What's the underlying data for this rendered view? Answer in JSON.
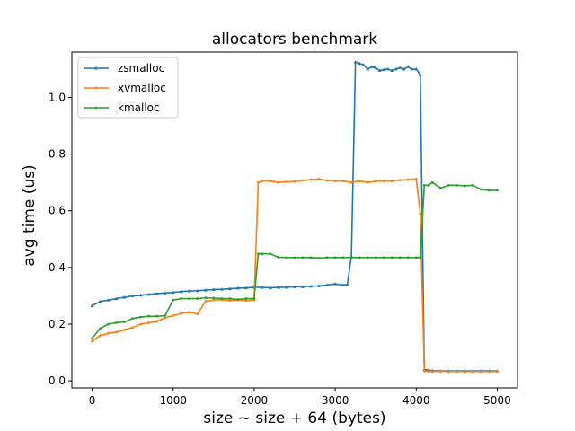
{
  "chart_data": {
    "type": "line",
    "title": "allocators benchmark",
    "xlabel": "size ~ size + 64 (bytes)",
    "ylabel": "avg time (us)",
    "xlim": [
      -250,
      5250
    ],
    "ylim": [
      -0.025,
      1.16
    ],
    "xticks": [
      0,
      1000,
      2000,
      3000,
      4000,
      5000
    ],
    "yticks": [
      0.0,
      0.2,
      0.4,
      0.6,
      0.8,
      1.0
    ],
    "grid": false,
    "legend_position": "top-left",
    "series": [
      {
        "name": "zsmalloc",
        "color": "#1f77b4",
        "marker": "tri",
        "x": [
          0,
          100,
          200,
          300,
          400,
          500,
          600,
          700,
          800,
          900,
          1000,
          1100,
          1200,
          1300,
          1400,
          1500,
          1600,
          1700,
          1800,
          1900,
          2000,
          2100,
          2200,
          2300,
          2400,
          2500,
          2600,
          2700,
          2800,
          2900,
          3000,
          3100,
          3150,
          3200,
          3250,
          3300,
          3350,
          3400,
          3450,
          3500,
          3550,
          3600,
          3650,
          3700,
          3750,
          3800,
          3850,
          3900,
          3950,
          4000,
          4050,
          4100,
          4150,
          4200,
          4300,
          4400,
          4500,
          4600,
          4700,
          4800,
          4900,
          5000
        ],
        "y": [
          0.265,
          0.28,
          0.285,
          0.29,
          0.295,
          0.3,
          0.302,
          0.305,
          0.308,
          0.31,
          0.312,
          0.315,
          0.317,
          0.318,
          0.32,
          0.322,
          0.323,
          0.325,
          0.327,
          0.328,
          0.33,
          0.33,
          0.328,
          0.33,
          0.33,
          0.332,
          0.332,
          0.334,
          0.335,
          0.338,
          0.342,
          0.338,
          0.34,
          0.44,
          1.125,
          1.12,
          1.115,
          1.1,
          1.108,
          1.105,
          1.095,
          1.098,
          1.1,
          1.095,
          1.1,
          1.105,
          1.1,
          1.108,
          1.1,
          1.1,
          1.08,
          0.04,
          0.038,
          0.036,
          0.035,
          0.035,
          0.035,
          0.035,
          0.035,
          0.035,
          0.035,
          0.035
        ]
      },
      {
        "name": "xvmalloc",
        "color": "#ff7f0e",
        "marker": "dot",
        "x": [
          0,
          100,
          200,
          300,
          400,
          500,
          600,
          700,
          800,
          900,
          1000,
          1100,
          1200,
          1300,
          1400,
          1500,
          1600,
          1700,
          1800,
          1900,
          2000,
          2050,
          2100,
          2200,
          2300,
          2400,
          2500,
          2600,
          2700,
          2800,
          2900,
          3000,
          3100,
          3200,
          3300,
          3400,
          3500,
          3600,
          3700,
          3800,
          3900,
          4000,
          4050,
          4100,
          4150,
          4200,
          4300,
          4400,
          4500,
          4600,
          4700,
          4800,
          4900,
          5000
        ],
        "y": [
          0.14,
          0.16,
          0.168,
          0.172,
          0.18,
          0.188,
          0.2,
          0.205,
          0.21,
          0.222,
          0.23,
          0.238,
          0.242,
          0.236,
          0.28,
          0.285,
          0.286,
          0.283,
          0.285,
          0.283,
          0.285,
          0.7,
          0.705,
          0.705,
          0.7,
          0.702,
          0.703,
          0.707,
          0.71,
          0.712,
          0.707,
          0.705,
          0.705,
          0.7,
          0.705,
          0.7,
          0.704,
          0.705,
          0.705,
          0.708,
          0.71,
          0.712,
          0.59,
          0.035,
          0.033,
          0.033,
          0.034,
          0.033,
          0.033,
          0.033,
          0.033,
          0.033,
          0.033,
          0.033
        ]
      },
      {
        "name": "kmalloc",
        "color": "#2ca02c",
        "marker": "dot",
        "x": [
          0,
          100,
          200,
          300,
          400,
          500,
          600,
          700,
          800,
          900,
          1000,
          1100,
          1200,
          1300,
          1400,
          1500,
          1600,
          1700,
          1800,
          1900,
          2000,
          2050,
          2100,
          2200,
          2300,
          2400,
          2500,
          2600,
          2700,
          2800,
          2900,
          3000,
          3100,
          3200,
          3300,
          3400,
          3500,
          3600,
          3700,
          3800,
          3900,
          4000,
          4050,
          4100,
          4150,
          4200,
          4300,
          4400,
          4500,
          4600,
          4700,
          4800,
          4900,
          5000
        ],
        "y": [
          0.15,
          0.185,
          0.2,
          0.205,
          0.208,
          0.22,
          0.225,
          0.228,
          0.228,
          0.23,
          0.285,
          0.29,
          0.29,
          0.29,
          0.293,
          0.292,
          0.29,
          0.29,
          0.287,
          0.29,
          0.29,
          0.448,
          0.448,
          0.448,
          0.436,
          0.435,
          0.435,
          0.435,
          0.435,
          0.433,
          0.435,
          0.435,
          0.435,
          0.435,
          0.435,
          0.435,
          0.435,
          0.435,
          0.435,
          0.435,
          0.435,
          0.435,
          0.435,
          0.69,
          0.69,
          0.7,
          0.68,
          0.69,
          0.69,
          0.688,
          0.69,
          0.675,
          0.672,
          0.672
        ]
      }
    ]
  }
}
